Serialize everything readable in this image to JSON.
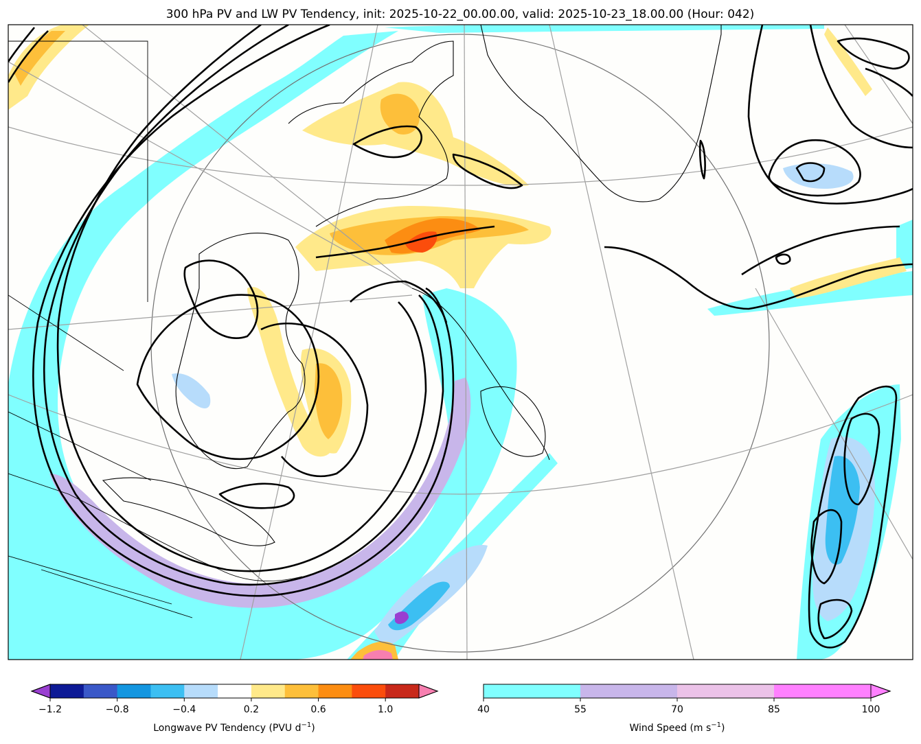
{
  "chart_data": {
    "type": "map",
    "title": "300 hPa PV and LW PV Tendency, init: 2025-10-22_00.00.00, valid: 2025-10-23_18.00.00 (Hour: 042)",
    "pv_tendency_colorbar": {
      "label": "Longwave PV Tendency (PVU d$^{-1}$)",
      "label_text": "Longwave PV Tendency (PVU d",
      "label_sup": "−1",
      "label_close": ")",
      "levels": [
        -1.2,
        -1.0,
        -0.8,
        -0.6,
        -0.4,
        -0.2,
        0.2,
        0.4,
        0.6,
        0.8,
        1.0,
        1.2
      ],
      "colors": [
        "#0d1a96",
        "#3a58c8",
        "#1496e0",
        "#3cbff2",
        "#b7dcfb",
        "#ffffff",
        "#ffe98a",
        "#fdbf3a",
        "#fc8d12",
        "#fb4d0c",
        "#c8281a"
      ],
      "under_color": "#9a3fd1",
      "over_color": "#f77fb0",
      "extend": "both",
      "tick_values": [
        -1.2,
        -0.8,
        -0.4,
        0.2,
        0.6,
        1.0
      ],
      "tick_labels": [
        "−1.2",
        "−0.8",
        "−0.4",
        "0.2",
        "0.6",
        "1.0"
      ]
    },
    "wind_speed_colorbar": {
      "label": "Wind Speed (m s$^{-1}$)",
      "label_text": "Wind Speed (m s",
      "label_sup": "−1",
      "label_close": ")",
      "levels": [
        40,
        55,
        70,
        85,
        100
      ],
      "colors": [
        "#80ffff",
        "#c8b6ea",
        "#ebc2e8",
        "#ff80ff"
      ],
      "extend": "max",
      "tick_values": [
        40,
        55,
        70,
        85,
        100
      ],
      "tick_labels": [
        "40",
        "55",
        "70",
        "85",
        "100"
      ]
    },
    "colors": {
      "jet_cyan": "#80ffff",
      "jet_lavender": "#c8b6ea",
      "pv_contour": "#000000",
      "coastline": "#000000",
      "graticule": "#a0a0a0"
    }
  }
}
